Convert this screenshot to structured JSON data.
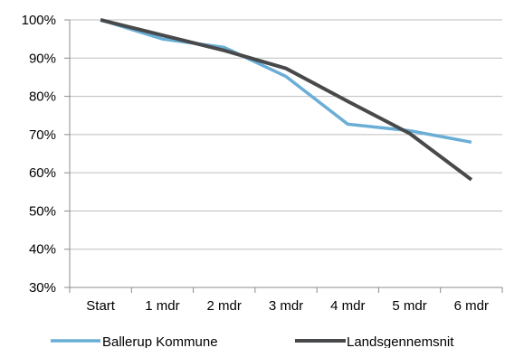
{
  "chart_data": {
    "type": "line",
    "categories": [
      "Start",
      "1 mdr",
      "2 mdr",
      "3 mdr",
      "4 mdr",
      "5 mdr",
      "6 mdr"
    ],
    "y_ticks": [
      "30%",
      "40%",
      "50%",
      "60%",
      "70%",
      "80%",
      "90%",
      "100%"
    ],
    "ylim": [
      30,
      100
    ],
    "unit": "%",
    "grid": true,
    "legend_position": "bottom",
    "series": [
      {
        "name": "Ballerup Kommune",
        "color": "#6aaed6",
        "values": [
          100,
          95,
          92.8,
          85.2,
          72.7,
          71,
          68
        ]
      },
      {
        "name": "Landsgennemsnit",
        "color": "#48494b",
        "values": [
          100,
          96,
          92,
          87.3,
          78.7,
          70.3,
          58.2
        ]
      }
    ]
  }
}
